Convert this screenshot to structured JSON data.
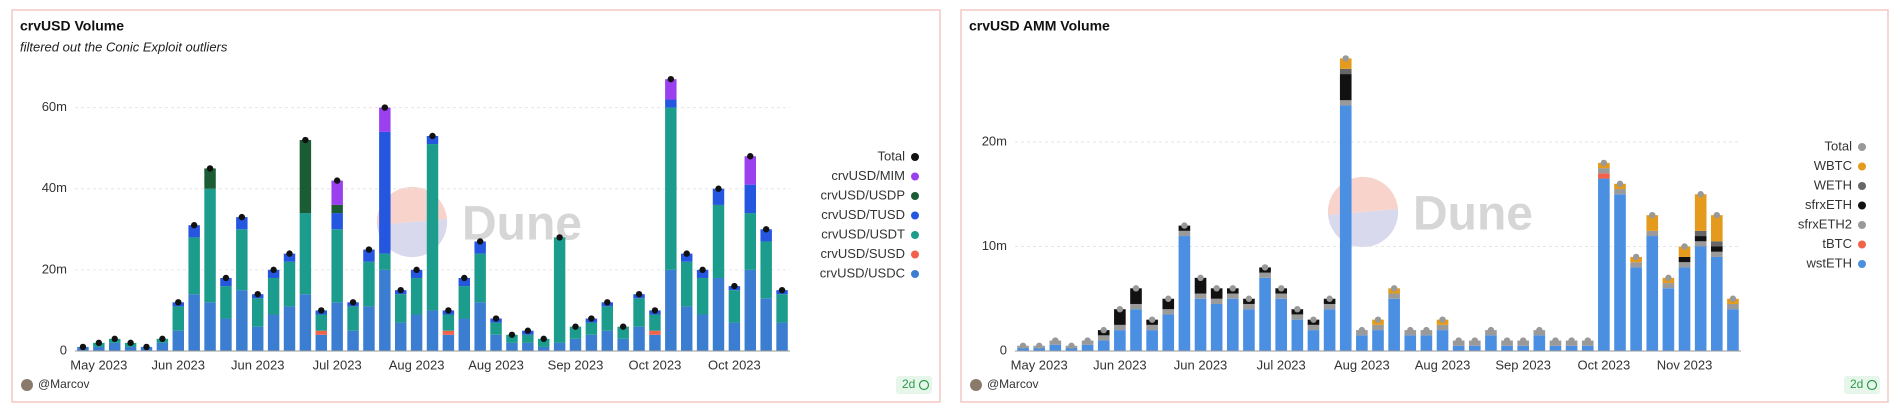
{
  "chart_data": [
    {
      "type": "bar",
      "title": "crvUSD Volume",
      "subtitle": "filtered out the Conic Exploit outliers",
      "watermark": "Dune",
      "author": "@Marcov",
      "refresh": "2d",
      "stacked": true,
      "grid": true,
      "legend": "right",
      "categories": [
        null,
        "May 2023",
        null,
        null,
        null,
        null,
        "Jun 2023",
        null,
        null,
        null,
        null,
        "Jun 2023",
        null,
        null,
        null,
        null,
        "Jul 2023",
        null,
        null,
        null,
        null,
        "Aug 2023",
        null,
        null,
        null,
        null,
        "Aug 2023",
        null,
        null,
        null,
        null,
        "Sep 2023",
        null,
        null,
        null,
        null,
        "Oct 2023",
        null,
        null,
        null,
        null,
        "Oct 2023",
        null,
        null,
        null
      ],
      "ylim": [
        0,
        70
      ],
      "yticks": [
        {
          "value": 0,
          "label": "0"
        },
        {
          "value": 20,
          "label": "20m"
        },
        {
          "value": 40,
          "label": "40m"
        },
        {
          "value": 60,
          "label": "60m"
        }
      ],
      "total": {
        "name": "Total",
        "color": "#111111",
        "values": [
          1,
          2,
          3,
          2,
          1,
          3,
          12,
          31,
          45,
          18,
          33,
          14,
          20,
          24,
          52,
          10,
          42,
          12,
          25,
          60,
          15,
          20,
          53,
          10,
          18,
          27,
          8,
          4,
          5,
          3,
          28,
          6,
          8,
          12,
          6,
          14,
          10,
          67,
          24,
          20,
          40,
          16,
          48,
          30,
          15
        ]
      },
      "series": [
        {
          "name": "crvUSD/USDC",
          "color": "#3b7dd0",
          "values": [
            1,
            1,
            2,
            1,
            1,
            2,
            5,
            14,
            12,
            8,
            15,
            6,
            9,
            11,
            14,
            4,
            12,
            5,
            11,
            20,
            7,
            9,
            10,
            4,
            8,
            12,
            4,
            2,
            2,
            1,
            2,
            3,
            4,
            5,
            3,
            6,
            4,
            20,
            11,
            9,
            18,
            7,
            20,
            13,
            7
          ]
        },
        {
          "name": "crvUSD/SUSD",
          "color": "#f2624b",
          "values": [
            0,
            0,
            0,
            0,
            0,
            0,
            0,
            0,
            0,
            0,
            0,
            0,
            0,
            0,
            0,
            1,
            0,
            0,
            0,
            0,
            0,
            0,
            0,
            1,
            0,
            0,
            0,
            0,
            0,
            0,
            0,
            0,
            0,
            0,
            0,
            0,
            1,
            0,
            0,
            0,
            0,
            0,
            0,
            0,
            0
          ]
        },
        {
          "name": "crvUSD/USDT",
          "color": "#1c9c8c",
          "values": [
            0,
            1,
            1,
            1,
            0,
            1,
            6,
            14,
            28,
            8,
            15,
            7,
            9,
            11,
            20,
            4,
            18,
            6,
            11,
            4,
            7,
            9,
            41,
            4,
            8,
            12,
            3,
            2,
            2,
            2,
            26,
            3,
            3,
            6,
            3,
            7,
            4,
            40,
            11,
            9,
            18,
            8,
            14,
            14,
            7
          ]
        },
        {
          "name": "crvUSD/TUSD",
          "color": "#2556e0",
          "values": [
            0,
            0,
            0,
            0,
            0,
            0,
            1,
            3,
            0,
            2,
            3,
            1,
            2,
            2,
            0,
            1,
            4,
            1,
            3,
            30,
            1,
            2,
            2,
            1,
            2,
            3,
            1,
            0,
            1,
            0,
            0,
            0,
            1,
            1,
            0,
            1,
            1,
            2,
            2,
            2,
            4,
            1,
            7,
            3,
            1
          ]
        },
        {
          "name": "crvUSD/USDP",
          "color": "#1b5c34",
          "values": [
            0,
            0,
            0,
            0,
            0,
            0,
            0,
            0,
            5,
            0,
            0,
            0,
            0,
            0,
            18,
            0,
            2,
            0,
            0,
            0,
            0,
            0,
            0,
            0,
            0,
            0,
            0,
            0,
            0,
            0,
            0,
            0,
            0,
            0,
            0,
            0,
            0,
            0,
            0,
            0,
            0,
            0,
            0,
            0,
            0
          ]
        },
        {
          "name": "crvUSD/MIM",
          "color": "#9b40ef",
          "values": [
            0,
            0,
            0,
            0,
            0,
            0,
            0,
            0,
            0,
            0,
            0,
            0,
            0,
            0,
            0,
            0,
            6,
            0,
            0,
            6,
            0,
            0,
            0,
            0,
            0,
            0,
            0,
            0,
            0,
            0,
            0,
            0,
            0,
            0,
            0,
            0,
            0,
            5,
            0,
            0,
            0,
            0,
            7,
            0,
            0
          ]
        }
      ]
    },
    {
      "type": "bar",
      "title": "crvUSD AMM Volume",
      "watermark": "Dune",
      "author": "@Marcov",
      "refresh": "2d",
      "stacked": true,
      "grid": true,
      "legend": "right",
      "categories": [
        null,
        "May 2023",
        null,
        null,
        null,
        null,
        "Jun 2023",
        null,
        null,
        null,
        null,
        "Jun 2023",
        null,
        null,
        null,
        null,
        "Jul 2023",
        null,
        null,
        null,
        null,
        "Aug 2023",
        null,
        null,
        null,
        null,
        "Aug 2023",
        null,
        null,
        null,
        null,
        "Sep 2023",
        null,
        null,
        null,
        null,
        "Oct 2023",
        null,
        null,
        null,
        null,
        "Nov 2023",
        null,
        null,
        null
      ],
      "ylim": [
        0,
        30
      ],
      "yticks": [
        {
          "value": 0,
          "label": "0"
        },
        {
          "value": 10,
          "label": "10m"
        },
        {
          "value": 20,
          "label": "20m"
        }
      ],
      "total": {
        "name": "Total",
        "color": "#999999",
        "values": [
          0.5,
          0.5,
          1,
          0.5,
          1,
          2,
          4,
          6,
          3,
          5,
          12,
          7,
          6,
          6,
          5,
          8,
          6,
          4,
          3,
          5,
          28,
          2,
          3,
          6,
          2,
          2,
          3,
          1,
          1,
          2,
          1,
          1,
          2,
          1,
          1,
          1,
          18,
          16,
          9,
          13,
          7,
          10,
          15,
          13,
          5
        ]
      },
      "series": [
        {
          "name": "wstETH",
          "color": "#4a8fe2",
          "values": [
            0.3,
            0.3,
            0.6,
            0.3,
            0.6,
            1,
            2,
            4,
            2,
            3.5,
            11,
            5,
            4.5,
            5,
            4,
            7,
            5,
            3,
            2,
            4,
            23.5,
            1.5,
            2,
            5,
            1.5,
            1.5,
            2,
            0.5,
            0.5,
            1.5,
            0.5,
            0.5,
            1.5,
            0.5,
            0.5,
            0.5,
            16.5,
            15,
            8,
            11,
            6,
            8,
            10,
            9,
            4
          ]
        },
        {
          "name": "tBTC",
          "color": "#f2624b",
          "values": [
            0,
            0,
            0,
            0,
            0,
            0,
            0,
            0,
            0,
            0,
            0,
            0,
            0,
            0,
            0,
            0,
            0,
            0,
            0,
            0,
            0,
            0,
            0,
            0,
            0,
            0,
            0,
            0,
            0,
            0,
            0,
            0,
            0,
            0,
            0,
            0,
            0.5,
            0,
            0,
            0,
            0,
            0,
            0,
            0,
            0
          ]
        },
        {
          "name": "sfrxETH2",
          "color": "#9a9a9a",
          "values": [
            0.2,
            0.2,
            0.4,
            0.2,
            0.4,
            0.5,
            0.5,
            0.5,
            0.5,
            0.5,
            0.5,
            0.5,
            0.5,
            0.5,
            0.5,
            0.5,
            0.5,
            0.5,
            0.5,
            0.5,
            0.5,
            0.5,
            0.5,
            0.5,
            0.5,
            0.5,
            0.5,
            0.5,
            0.5,
            0.5,
            0.5,
            0.5,
            0.5,
            0.5,
            0.5,
            0.5,
            0.5,
            0.5,
            0.5,
            0.5,
            0.5,
            0.5,
            0.5,
            0.5,
            0.5
          ]
        },
        {
          "name": "sfrxETH",
          "color": "#111111",
          "values": [
            0,
            0,
            0,
            0,
            0,
            0.5,
            1.5,
            1.5,
            0.5,
            1,
            0.5,
            1.5,
            1,
            0.5,
            0.5,
            0.5,
            0.5,
            0.5,
            0.5,
            0.5,
            2.5,
            0,
            0,
            0,
            0,
            0,
            0,
            0,
            0,
            0,
            0,
            0,
            0,
            0,
            0,
            0,
            0,
            0,
            0,
            0,
            0,
            0.5,
            0.5,
            0.5,
            0
          ]
        },
        {
          "name": "WETH",
          "color": "#666666",
          "values": [
            0,
            0,
            0,
            0,
            0,
            0,
            0,
            0,
            0,
            0,
            0,
            0,
            0,
            0,
            0,
            0,
            0,
            0,
            0,
            0,
            0.5,
            0,
            0,
            0,
            0,
            0,
            0,
            0,
            0,
            0,
            0,
            0,
            0,
            0,
            0,
            0,
            0,
            0,
            0,
            0,
            0,
            0,
            0.5,
            0.5,
            0
          ]
        },
        {
          "name": "WBTC",
          "color": "#e49a1c",
          "values": [
            0,
            0,
            0,
            0,
            0,
            0,
            0,
            0,
            0,
            0,
            0,
            0,
            0,
            0,
            0,
            0,
            0,
            0,
            0,
            0,
            1,
            0,
            0.5,
            0.5,
            0,
            0,
            0.5,
            0,
            0,
            0,
            0,
            0,
            0,
            0,
            0,
            0,
            0.5,
            0.5,
            0.5,
            1.5,
            0.5,
            1,
            3.5,
            2.5,
            0.5
          ]
        }
      ]
    }
  ]
}
